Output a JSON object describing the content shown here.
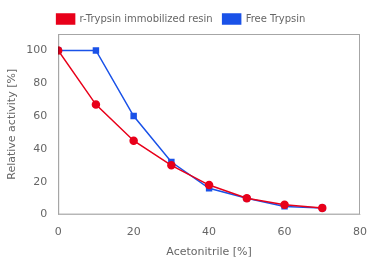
{
  "chart_data": {
    "type": "line",
    "x": [
      0,
      10,
      20,
      30,
      40,
      50,
      60,
      70
    ],
    "series": [
      {
        "name": "r-Trypsin immobilized resin",
        "color": "#e8001a",
        "marker": "circle",
        "values": [
          100,
          67,
          45,
          30,
          18,
          10,
          6,
          4
        ]
      },
      {
        "name": "Free Trypsin",
        "color": "#1a52e8",
        "marker": "square",
        "values": [
          100,
          100,
          60,
          32,
          16,
          10,
          5,
          4
        ]
      }
    ],
    "xlabel": "Acetonitrile [%]",
    "ylabel": "Relative activity [%]",
    "xlim": [
      0,
      80
    ],
    "ylim": [
      0,
      110
    ],
    "xticks": [
      0,
      20,
      40,
      60,
      80
    ],
    "yticks": [
      0,
      20,
      40,
      60,
      80,
      100
    ],
    "grid": false,
    "legend": "top"
  }
}
